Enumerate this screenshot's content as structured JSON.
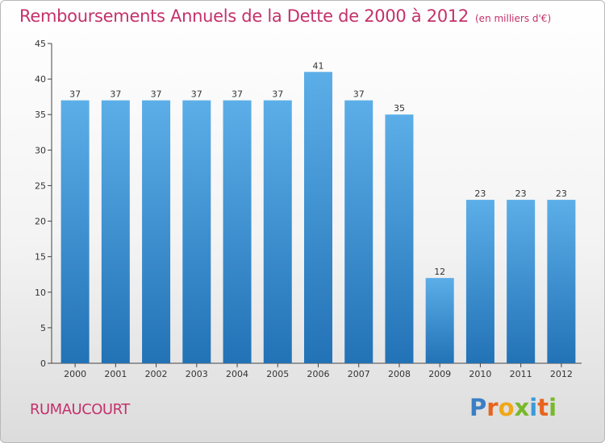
{
  "header": {
    "title": "Remboursements Annuels de la Dette de 2000 à 2012",
    "unit": "(en milliers d'€)"
  },
  "footer": {
    "commune": "RUMAUCOURT",
    "brand_letters": [
      "P",
      "r",
      "o",
      "x",
      "i",
      "t",
      "i"
    ],
    "brand_colors": [
      "#3a7fc4",
      "#e8641e",
      "#f0a818",
      "#79b82a",
      "#3a9ad8",
      "#e8641e",
      "#79b82a"
    ]
  },
  "colors": {
    "bar_top": "#5caee8",
    "bar_bottom": "#2272b6",
    "title": "#c4316a",
    "axis": "#444444"
  },
  "chart_data": {
    "type": "bar",
    "title": "Remboursements Annuels de la Dette de 2000 à 2012",
    "xlabel": "",
    "ylabel": "",
    "categories": [
      "2000",
      "2001",
      "2002",
      "2003",
      "2004",
      "2005",
      "2006",
      "2007",
      "2008",
      "2009",
      "2010",
      "2011",
      "2012"
    ],
    "values": [
      37,
      37,
      37,
      37,
      37,
      37,
      41,
      37,
      35,
      12,
      23,
      23,
      23
    ],
    "ylim": [
      0,
      45
    ],
    "yticks": [
      0,
      5,
      10,
      15,
      20,
      25,
      30,
      35,
      40,
      45
    ],
    "grid": false,
    "legend": "none"
  }
}
